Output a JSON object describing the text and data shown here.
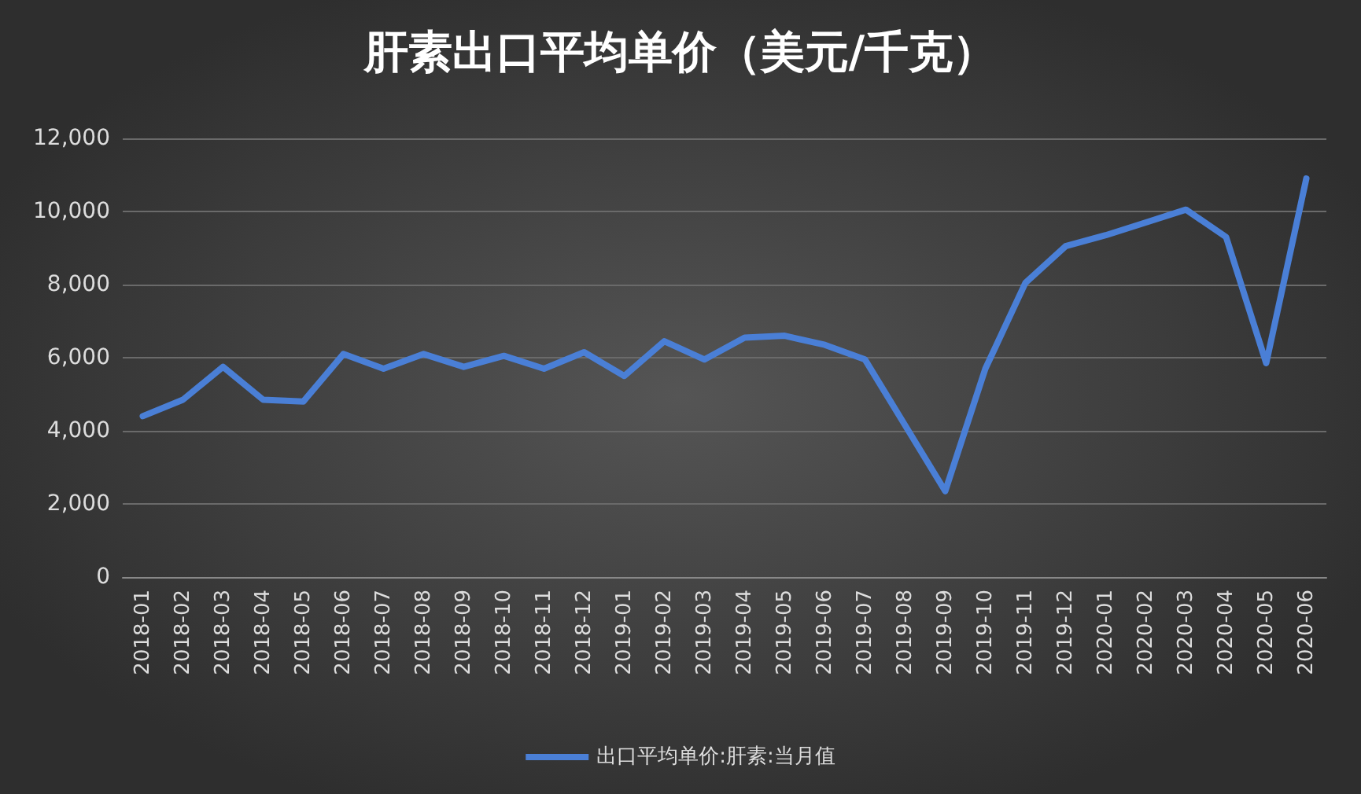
{
  "chart_data": {
    "type": "line",
    "title": "肝素出口平均单价（美元/千克）",
    "categories": [
      "2018-01",
      "2018-02",
      "2018-03",
      "2018-04",
      "2018-05",
      "2018-06",
      "2018-07",
      "2018-08",
      "2018-09",
      "2018-10",
      "2018-11",
      "2018-12",
      "2019-01",
      "2019-02",
      "2019-03",
      "2019-04",
      "2019-05",
      "2019-06",
      "2019-07",
      "2019-08",
      "2019-09",
      "2019-10",
      "2019-11",
      "2019-12",
      "2020-01",
      "2020-02",
      "2020-03",
      "2020-04",
      "2020-05",
      "2020-06"
    ],
    "series": [
      {
        "name": "出口平均单价:肝素:当月值",
        "color": "#4a7fd6",
        "values": [
          4400,
          4850,
          5750,
          4850,
          4800,
          6100,
          5700,
          6100,
          5750,
          6050,
          5700,
          6150,
          5500,
          6450,
          5950,
          6550,
          6600,
          6350,
          5950,
          4150,
          2350,
          5700,
          8050,
          9050,
          9350,
          9700,
          10050,
          9300,
          5850,
          10900
        ]
      }
    ],
    "ylim": [
      0,
      12000
    ],
    "yticks": [
      0,
      {
        "value": 2000,
        "label": "2,000"
      },
      {
        "value": 4000,
        "label": "4,000"
      },
      {
        "value": 6000,
        "label": "6,000"
      },
      {
        "value": 8000,
        "label": "8,000"
      },
      {
        "value": 10000,
        "label": "10,000"
      },
      {
        "value": 12000,
        "label": "12,000"
      }
    ],
    "grid": "y",
    "legend": "bottom",
    "marker": "none",
    "line_style": "solid"
  }
}
